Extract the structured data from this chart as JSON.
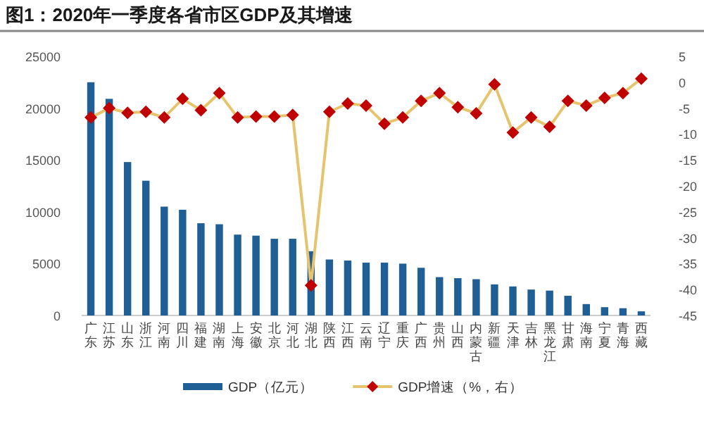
{
  "chart_data": {
    "type": "bar",
    "title": "图1：2020年一季度各省市区GDP及其增速",
    "categories": [
      "广东",
      "江苏",
      "山东",
      "浙江",
      "河南",
      "四川",
      "福建",
      "湖南",
      "上海",
      "安徽",
      "北京",
      "河北",
      "湖北",
      "陕西",
      "江西",
      "云南",
      "辽宁",
      "重庆",
      "广西",
      "贵州",
      "山西",
      "内蒙古",
      "新疆",
      "天津",
      "吉林",
      "黑龙江",
      "甘肃",
      "海南",
      "宁夏",
      "青海",
      "西藏"
    ],
    "series": [
      {
        "name": "GDP（亿元）",
        "color": "#1f5f96",
        "values": [
          22500,
          20900,
          14800,
          13000,
          10500,
          10200,
          8900,
          8800,
          7800,
          7700,
          7400,
          7400,
          6200,
          5400,
          5300,
          5100,
          5100,
          5000,
          4600,
          3700,
          3600,
          3500,
          3000,
          2800,
          2500,
          2400,
          1900,
          1100,
          800,
          700,
          400
        ]
      },
      {
        "name": "GDP增速（%，右）",
        "type": "line",
        "axis": "y2",
        "color": "#e6c46e",
        "marker": "diamond",
        "colors": [
          "#c00000",
          "#c00000",
          "#c00000",
          "#c00000",
          "#c00000",
          "#c00000",
          "#c00000",
          "#c00000",
          "#c00000",
          "#c00000",
          "#c00000",
          "#c00000",
          "#c00000",
          "#c00000",
          "#c00000",
          "#c00000",
          "#c00000",
          "#c00000",
          "#c00000",
          "#c00000",
          "#c00000",
          "#c00000",
          "#c00000",
          "#c00000",
          "#c00000",
          "#c00000",
          "#c00000",
          "#c00000",
          "#c00000",
          "#c00000",
          "#c00000"
        ],
        "values": [
          -6.8,
          -5.0,
          -5.9,
          -5.7,
          -6.8,
          -3.2,
          -5.4,
          -2.1,
          -6.8,
          -6.6,
          -6.6,
          -6.3,
          -39.2,
          -5.7,
          -4.1,
          -4.5,
          -8.0,
          -6.8,
          -3.6,
          -2.1,
          -4.8,
          -6.0,
          -0.4,
          -9.7,
          -6.8,
          -8.6,
          -3.6,
          -4.5,
          -3.0,
          -2.1,
          0.7
        ]
      }
    ],
    "ylim": [
      0,
      25000
    ],
    "yticks": [
      0,
      5000,
      10000,
      15000,
      20000,
      25000
    ],
    "y2lim": [
      -45,
      5
    ],
    "y2ticks": [
      -45,
      -40,
      -35,
      -30,
      -25,
      -20,
      -15,
      -10,
      -5,
      0,
      5
    ],
    "grid": false,
    "legend": "bottom"
  }
}
